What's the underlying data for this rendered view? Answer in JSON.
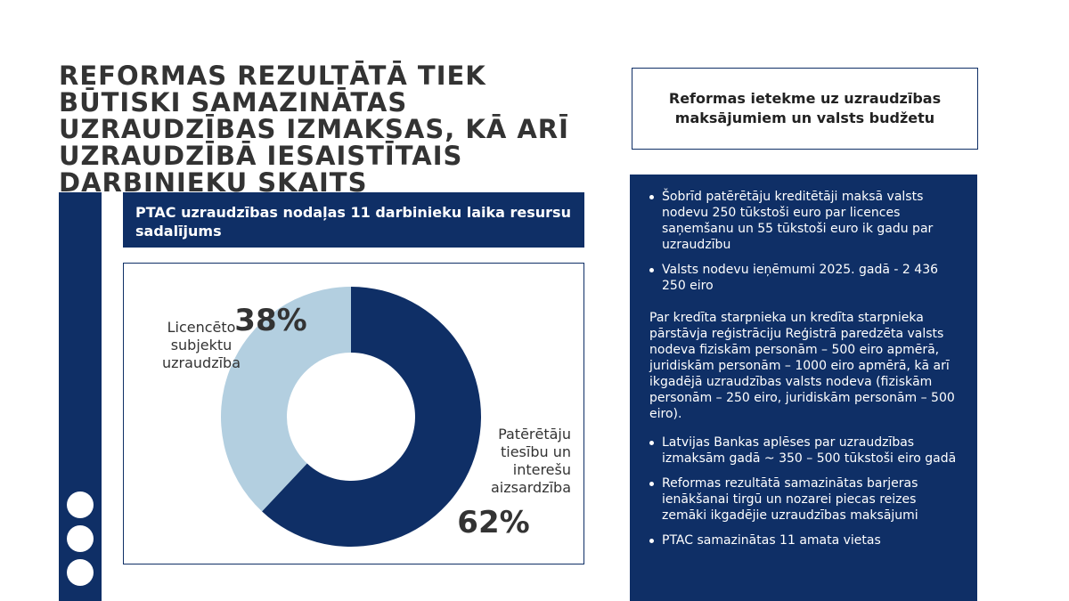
{
  "title": "REFORMAS REZULTĀTĀ TIEK BŪTISKI SAMAZINĀTAS UZRAUDZĪBAS IZMAKSAS, KĀ ARĪ UZRAUDZĪBĀ IESAISTĪTAIS DARBINIEKU SKAITS",
  "colors": {
    "navy": "#0f2f66",
    "light_blue": "#b3cfe0",
    "text_dark": "#333333"
  },
  "chart_data": {
    "type": "pie",
    "title": "PTAC uzraudzības nodaļas 11 darbinieku laika resursu sadalījums",
    "slices": [
      {
        "label": "Patērētāju tiesību un interešu aizsardzība",
        "value": 62,
        "value_label": "62%",
        "color": "#0f2f66"
      },
      {
        "label": "Licencēto subjektu uzraudzība",
        "value": 38,
        "value_label": "38%",
        "color": "#b3cfe0"
      }
    ],
    "donut": true
  },
  "side": {
    "heading": "Reformas ietekme uz uzraudzības maksājumiem un valsts budžetu",
    "bullets_top": [
      "Šobrīd patērētāju kreditētāji maksā valsts nodevu 250 tūkstoši euro par licences saņemšanu un 55 tūkstoši euro ik gadu par uzraudzību",
      "Valsts nodevu ieņēmumi 2025. gadā - 2 436 250 eiro"
    ],
    "paragraph": "Par kredīta starpnieka un kredīta starpnieka pārstāvja reģistrāciju Reģistrā paredzēta valsts nodeva fiziskām personām – 500 eiro apmērā, juridiskām personām – 1000 eiro apmērā, kā arī ikgadējā uzraudzības valsts nodeva (fiziskām personām – 250 eiro, juridiskām personām – 500 eiro).",
    "bullets_bottom": [
      "Latvijas Bankas aplēses par uzraudzības izmaksām gadā ~ 350 – 500 tūkstoši eiro gadā",
      "Reformas rezultātā samazinātas barjeras ienākšanai tirgū un nozarei piecas reizes zemāki ikgadējie uzraudzības maksājumi",
      "PTAC samazinātas 11 amata vietas"
    ]
  }
}
